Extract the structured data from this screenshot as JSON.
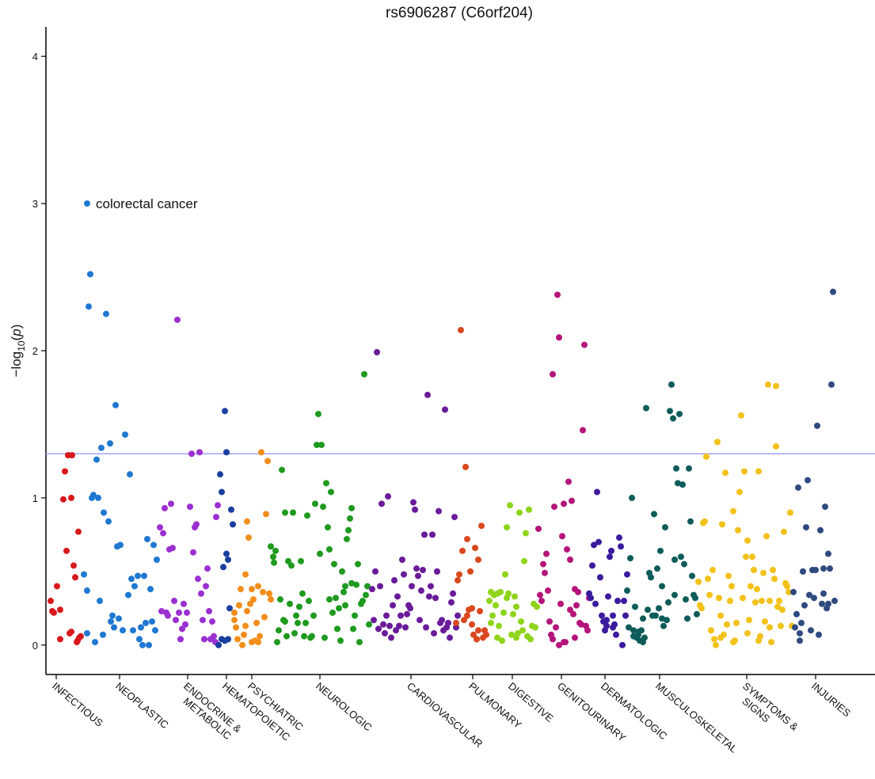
{
  "chart_data": {
    "type": "scatter",
    "title": "rs6906287 (C6orf204)",
    "y_label": [
      "−log",
      "10",
      "(",
      "p",
      ")"
    ],
    "ylim": [
      -0.2,
      4.2
    ],
    "yticks": [
      0,
      1,
      2,
      3,
      4
    ],
    "xlim": [
      58,
      1105
    ],
    "xticks": [
      {
        "value": 71,
        "label": "INFECTIOUS"
      },
      {
        "value": 151,
        "label": "NEOPLASTIC"
      },
      {
        "value": 237,
        "label": [
          "ENDOCRINE &",
          "METABOLIC"
        ]
      },
      {
        "value": 286,
        "label": "HEMATOPOIETIC"
      },
      {
        "value": 318,
        "label": "PSYCHIATRIC"
      },
      {
        "value": 404,
        "label": "NEUROLOGIC"
      },
      {
        "value": 519,
        "label": "CARDIOVASCULAR"
      },
      {
        "value": 597,
        "label": "PULMONARY"
      },
      {
        "value": 647,
        "label": "DIGESTIVE"
      },
      {
        "value": 709,
        "label": "GENITOURINARY"
      },
      {
        "value": 764,
        "label": "DERMATOLOGIC"
      },
      {
        "value": 833,
        "label": "MUSCULOSKELETAL"
      },
      {
        "value": 943,
        "label": [
          "SYMPTOMS &",
          "SIGNS"
        ]
      },
      {
        "value": 1030,
        "label": "INJURIES"
      }
    ],
    "hline": {
      "value": 1.3,
      "color": "#a0a0ff"
    },
    "annotations": [
      {
        "text": "colorectal cancer",
        "x": 110,
        "y": 3.0
      }
    ],
    "series": [
      {
        "color": "#d7191c",
        "x": [
          64,
          68,
          72,
          76,
          80,
          82,
          84,
          86,
          88,
          90,
          91,
          93,
          95,
          97,
          99,
          100,
          102,
          76,
          66,
          90,
          98
        ],
        "values": [
          0.3,
          0.22,
          0.4,
          0.24,
          0.99,
          1.18,
          0.64,
          1.29,
          0.08,
          1.0,
          1.29,
          0.54,
          0.46,
          0.02,
          0.77,
          0.05,
          0.06,
          0.04,
          0.23,
          0.09,
          0.03
        ]
      },
      {
        "color": "#1f78d1",
        "x": [
          106,
          110,
          112,
          114,
          116,
          118,
          120,
          122,
          124,
          126,
          128,
          131,
          134,
          137,
          139,
          142,
          146,
          148,
          152,
          158,
          162,
          164,
          166,
          170,
          174,
          178,
          182,
          186,
          190,
          194,
          196,
          198,
          110,
          130,
          140,
          150,
          155,
          180,
          188,
          192,
          168,
          176,
          184,
          144,
          110
        ],
        "values": [
          0.48,
          0.37,
          2.3,
          2.52,
          1.0,
          1.02,
          0.02,
          1.26,
          1.0,
          0.3,
          1.34,
          0.9,
          2.25,
          0.84,
          1.37,
          0.2,
          1.63,
          0.67,
          0.68,
          1.43,
          0.34,
          1.16,
          0.45,
          0.4,
          0.47,
          0.12,
          0.47,
          0.72,
          0.38,
          0.68,
          0.1,
          0.58,
          0.08,
          0.07,
          0.16,
          0.18,
          0.1,
          0.0,
          0.0,
          0.16,
          0.1,
          0.04,
          0.15,
          0.12,
          3.0
        ]
      },
      {
        "color": "#9b30d0",
        "x": [
          202,
          204,
          206,
          208,
          210,
          212,
          214,
          216,
          218,
          220,
          222,
          224,
          226,
          228,
          230,
          232,
          234,
          236,
          240,
          242,
          244,
          246,
          248,
          250,
          252,
          254,
          256,
          258,
          260,
          262,
          264,
          266,
          268,
          270,
          272,
          273,
          275
        ],
        "values": [
          0.8,
          0.23,
          0.76,
          0.93,
          0.22,
          0.2,
          0.65,
          0.96,
          0.66,
          0.3,
          0.17,
          2.21,
          0.22,
          0.04,
          0.11,
          0.28,
          0.14,
          0.22,
          0.94,
          1.3,
          0.63,
          0.8,
          0.82,
          0.45,
          1.31,
          0.35,
          0.17,
          0.04,
          0.4,
          0.52,
          0.23,
          0.04,
          0.16,
          0.06,
          0.02,
          0.87,
          0.95
        ]
      },
      {
        "color": "#1a3f9e",
        "x": [
          276,
          278,
          280,
          282,
          284,
          286,
          288,
          290,
          292,
          294,
          280,
          286,
          288,
          284
        ],
        "values": [
          0.0,
          1.16,
          1.04,
          0.53,
          1.59,
          1.31,
          0.58,
          0.25,
          0.92,
          0.82,
          0.04,
          0.62,
          0.04,
          0.03
        ]
      },
      {
        "color": "#f28e1c",
        "x": [
          296,
          298,
          300,
          302,
          304,
          306,
          308,
          310,
          312,
          314,
          316,
          318,
          320,
          322,
          324,
          326,
          328,
          330,
          332,
          334,
          336,
          338,
          340,
          342,
          296,
          310,
          318,
          326,
          312
        ],
        "values": [
          0.17,
          0.12,
          0.04,
          0.27,
          0.38,
          0.0,
          0.07,
          0.48,
          0.84,
          0.73,
          0.28,
          0.38,
          0.31,
          0.03,
          0.15,
          0.02,
          0.06,
          1.31,
          0.36,
          0.19,
          0.89,
          1.25,
          0.35,
          0.31,
          0.22,
          0.13,
          0.02,
          0.4,
          0.23
        ]
      },
      {
        "color": "#1f9a1f",
        "x": [
          346,
          348,
          350,
          352,
          354,
          356,
          358,
          360,
          362,
          364,
          366,
          368,
          370,
          372,
          374,
          376,
          378,
          380,
          382,
          384,
          386,
          388,
          390,
          392,
          394,
          396,
          398,
          400,
          402,
          404,
          406,
          408,
          410,
          412,
          414,
          416,
          418,
          420,
          422,
          424,
          426,
          428,
          430,
          432,
          434,
          436,
          438,
          440,
          442,
          444,
          446,
          448,
          450,
          452,
          454,
          456,
          458,
          460,
          462,
          464,
          466,
          342,
          345,
          360,
          416,
          436,
          444
        ],
        "values": [
          0.56,
          0.64,
          0.02,
          0.1,
          0.31,
          1.19,
          0.17,
          0.9,
          0.06,
          0.57,
          0.28,
          0.54,
          0.9,
          0.08,
          0.2,
          0.15,
          0.26,
          0.57,
          0.35,
          0.06,
          0.15,
          0.88,
          0.3,
          0.05,
          0.06,
          0.2,
          0.96,
          1.36,
          1.57,
          0.62,
          1.36,
          0.94,
          0.05,
          1.1,
          0.8,
          0.65,
          1.04,
          0.22,
          0.55,
          0.32,
          0.11,
          0.25,
          0.03,
          0.5,
          0.36,
          0.27,
          0.72,
          0.78,
          0.86,
          0.42,
          0.11,
          0.2,
          0.41,
          0.55,
          0.02,
          0.28,
          0.3,
          1.84,
          0.34,
          0.4,
          0.14,
          0.67,
          0.6,
          0.16,
          0.31,
          0.4,
          0.93
        ]
      },
      {
        "color": "#6a1b9a",
        "x": [
          470,
          472,
          474,
          476,
          478,
          480,
          482,
          484,
          486,
          488,
          490,
          492,
          494,
          496,
          498,
          500,
          502,
          504,
          506,
          508,
          510,
          512,
          514,
          516,
          518,
          520,
          522,
          524,
          526,
          528,
          530,
          532,
          534,
          536,
          538,
          540,
          542,
          544,
          546,
          548,
          550,
          552,
          554,
          556,
          558,
          560,
          562,
          564,
          566,
          568,
          570,
          572,
          574,
          576,
          578
        ],
        "values": [
          0.38,
          0.17,
          0.5,
          1.99,
          0.11,
          0.4,
          0.96,
          0.14,
          0.08,
          0.2,
          1.01,
          0.13,
          0.05,
          0.27,
          0.44,
          0.1,
          0.33,
          0.13,
          0.2,
          0.58,
          0.48,
          0.12,
          0.21,
          0.27,
          0.25,
          0.4,
          0.97,
          0.92,
          0.52,
          0.47,
          0.17,
          0.37,
          0.51,
          0.75,
          0.12,
          1.7,
          0.33,
          0.4,
          0.75,
          0.08,
          0.32,
          0.5,
          0.91,
          0.15,
          0.17,
          0.1,
          1.6,
          0.12,
          0.15,
          0.05,
          0.29,
          0.35,
          0.87,
          0.12,
          0.2
        ]
      },
      {
        "color": "#d9481e",
        "x": [
          576,
          578,
          580,
          582,
          584,
          586,
          588,
          590,
          592,
          594,
          596,
          598,
          600,
          602,
          604,
          606,
          608,
          610,
          612,
          614,
          596,
          590,
          602,
          604
        ],
        "values": [
          0.15,
          0.44,
          0.48,
          2.14,
          0.64,
          0.17,
          1.21,
          0.72,
          0.24,
          0.5,
          0.14,
          0.07,
          0.66,
          0.04,
          0.58,
          0.23,
          0.81,
          0.05,
          0.1,
          0.07,
          0.25,
          0.2,
          0.04,
          0.1
        ]
      },
      {
        "color": "#8fd41a",
        "x": [
          618,
          620,
          622,
          624,
          626,
          628,
          630,
          632,
          634,
          636,
          638,
          640,
          642,
          644,
          646,
          648,
          650,
          652,
          654,
          656,
          658,
          660,
          662,
          664,
          666,
          668,
          670,
          672,
          674,
          676,
          678,
          628,
          640,
          652,
          620
        ],
        "values": [
          0.3,
          0.36,
          0.2,
          0.34,
          0.27,
          0.05,
          0.13,
          0.36,
          0.03,
          0.22,
          0.48,
          0.8,
          0.35,
          0.95,
          0.07,
          0.21,
          0.33,
          0.26,
          0.08,
          0.9,
          0.16,
          0.1,
          0.57,
          0.76,
          0.06,
          0.92,
          0.04,
          0.13,
          0.28,
          0.12,
          0.26,
          0.35,
          0.32,
          0.05,
          0.15
        ]
      },
      {
        "color": "#b5157a",
        "x": [
          680,
          682,
          684,
          686,
          688,
          690,
          692,
          694,
          696,
          698,
          700,
          702,
          704,
          706,
          708,
          710,
          712,
          714,
          716,
          718,
          720,
          722,
          724,
          726,
          728,
          730,
          732,
          734,
          736,
          738,
          740,
          742,
          744,
          698,
          706,
          712,
          726,
          720
        ],
        "values": [
          0.79,
          0.34,
          0.3,
          0.55,
          0.49,
          0.62,
          0.37,
          0.16,
          0.07,
          1.84,
          0.94,
          0.12,
          2.38,
          2.09,
          0.28,
          0.74,
          0.96,
          0.02,
          0.65,
          1.11,
          0.58,
          0.98,
          0.21,
          0.38,
          0.27,
          0.36,
          0.15,
          0.14,
          1.46,
          2.04,
          0.13,
          0.1,
          0.32,
          0.04,
          0.0,
          0.02,
          0.05,
          0.24
        ]
      },
      {
        "color": "#3c1a9e",
        "x": [
          744,
          746,
          748,
          750,
          752,
          754,
          756,
          758,
          760,
          762,
          764,
          766,
          768,
          770,
          772,
          774,
          776,
          778,
          780,
          782,
          784,
          786,
          788,
          790,
          792,
          766,
          774
        ],
        "values": [
          0.35,
          0.32,
          0.54,
          0.68,
          0.28,
          1.04,
          0.7,
          0.46,
          0.2,
          0.16,
          0.1,
          0.13,
          0.33,
          0.6,
          0.64,
          0.12,
          0.14,
          0.07,
          0.3,
          0.73,
          0.67,
          0.0,
          0.3,
          0.2,
          0.48,
          0.17,
          0.2
        ]
      },
      {
        "color": "#0e5c5a",
        "x": [
          792,
          794,
          796,
          798,
          800,
          802,
          804,
          806,
          808,
          810,
          812,
          814,
          816,
          818,
          820,
          822,
          824,
          826,
          828,
          830,
          832,
          834,
          836,
          838,
          840,
          842,
          844,
          846,
          848,
          850,
          852,
          854,
          856,
          858,
          860,
          862,
          864,
          866,
          868,
          870,
          872,
          874,
          876,
          878,
          880,
          800,
          812,
          806,
          836,
          852
        ],
        "values": [
          0.37,
          0.12,
          0.59,
          1.0,
          0.06,
          0.26,
          0.05,
          0.09,
          0.03,
          0.1,
          0.18,
          0.05,
          1.61,
          0.24,
          0.49,
          0.46,
          0.2,
          0.89,
          0.2,
          0.52,
          0.25,
          0.64,
          0.4,
          0.13,
          0.8,
          0.17,
          0.29,
          1.59,
          1.77,
          1.54,
          0.34,
          1.2,
          1.1,
          1.57,
          0.6,
          1.09,
          0.55,
          0.31,
          0.18,
          1.2,
          0.84,
          0.47,
          0.34,
          0.32,
          0.21,
          0.1,
          0.02,
          0.07,
          0.18,
          0.58
        ]
      },
      {
        "color": "#f2c21a",
        "x": [
          882,
          884,
          886,
          888,
          890,
          892,
          894,
          896,
          898,
          900,
          902,
          904,
          906,
          908,
          910,
          912,
          914,
          916,
          918,
          920,
          922,
          924,
          926,
          928,
          930,
          932,
          934,
          936,
          938,
          940,
          942,
          944,
          946,
          948,
          950,
          952,
          954,
          956,
          958,
          960,
          962,
          964,
          966,
          968,
          970,
          972,
          974,
          976,
          978,
          980,
          982,
          984,
          986,
          988,
          990,
          992,
          994,
          996,
          998,
          1000,
          910,
          926,
          944,
          958,
          972,
          980
        ],
        "values": [
          0.43,
          0.27,
          0.25,
          0.83,
          0.84,
          1.28,
          0.45,
          0.34,
          0.1,
          0.51,
          0.04,
          0.0,
          1.38,
          0.32,
          0.2,
          0.82,
          0.07,
          1.17,
          0.14,
          0.47,
          0.3,
          0.4,
          0.91,
          0.03,
          0.15,
          0.78,
          1.04,
          1.56,
          0.32,
          1.18,
          0.6,
          0.71,
          0.17,
          0.4,
          0.6,
          0.51,
          0.29,
          0.38,
          1.18,
          0.06,
          0.3,
          0.49,
          0.16,
          0.74,
          1.77,
          0.3,
          0.02,
          0.51,
          0.45,
          1.76,
          0.26,
          0.3,
          0.13,
          0.24,
          0.77,
          0.42,
          0.4,
          0.36,
          0.9,
          0.13,
          0.05,
          0.02,
          0.08,
          0.03,
          0.12,
          1.35
        ]
      },
      {
        "color": "#2f4a7f",
        "x": [
          1002,
          1004,
          1006,
          1008,
          1010,
          1012,
          1014,
          1016,
          1018,
          1020,
          1022,
          1024,
          1026,
          1028,
          1030,
          1032,
          1034,
          1036,
          1038,
          1040,
          1042,
          1044,
          1046,
          1048,
          1050,
          1052,
          1054,
          1046,
          1040,
          1010
        ],
        "values": [
          0.36,
          0.12,
          0.21,
          1.07,
          0.08,
          0.15,
          0.5,
          0.27,
          0.8,
          1.12,
          0.34,
          0.1,
          0.51,
          0.32,
          0.51,
          1.49,
          0.07,
          0.78,
          0.28,
          0.35,
          0.94,
          0.25,
          0.62,
          0.52,
          1.77,
          2.4,
          0.3,
          0.28,
          0.52,
          0.03
        ]
      }
    ]
  }
}
